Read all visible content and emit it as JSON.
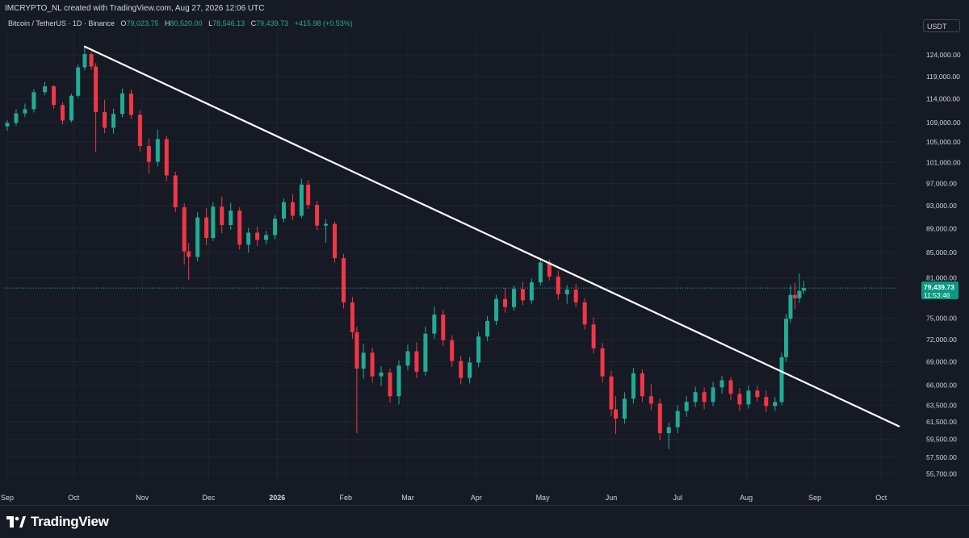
{
  "header": {
    "author_line": "IMCRYPTO_NL created with TradingView.com, Aug 27, 2026 12:06 UTC",
    "symbol_title": "Bitcoin / TetherUS · 1D · Binance",
    "ohlc": {
      "o_label": "O",
      "o": "79,023.75",
      "h_label": "H",
      "h": "80,520.00",
      "l_label": "L",
      "l": "78,546.13",
      "c_label": "C",
      "c": "79,439.73",
      "change": "+415.98 (+0.53%)"
    },
    "currency": "USDT"
  },
  "price_tag": {
    "price": "79,439.73",
    "countdown": "11:53:46"
  },
  "footer": {
    "logo_text": "TradingView",
    "logo_icon": "tradingview-logo-icon"
  },
  "colors": {
    "up": "#22ab94",
    "down": "#f23645",
    "background": "#161a25",
    "grid": "#1f2430",
    "trendline": "#ffffff",
    "price_tag": "#089981"
  },
  "chart_data": {
    "type": "candlestick",
    "symbol": "BTCUSDT",
    "interval": "1D",
    "x_ticks": [
      "Sep",
      "Oct",
      "Nov",
      "Dec",
      "2026",
      "Feb",
      "Mar",
      "Apr",
      "May",
      "Jun",
      "Jul",
      "Aug",
      "Sep",
      "Oct"
    ],
    "y_ticks": [
      124000,
      119000,
      114000,
      109000,
      105000,
      101000,
      97000,
      93000,
      89000,
      85000,
      81000,
      75000,
      72000,
      69000,
      66000,
      63500,
      61500,
      59500,
      57500,
      55700
    ],
    "y_tick_labels": [
      "124,000.00",
      "119,000.00",
      "114,000.00",
      "109,000.00",
      "105,000.00",
      "101,000.00",
      "97,000.00",
      "93,000.00",
      "89,000.00",
      "85,000.00",
      "81,000.00",
      "75,000.00",
      "72,000.00",
      "69,000.00",
      "66,000.00",
      "63,500.00",
      "61,500.00",
      "59,500.00",
      "57,500.00",
      "55,700.00"
    ],
    "y_scale": "log",
    "ylim": [
      55000,
      130000
    ],
    "last_price": 79439.73,
    "trendline": {
      "start": {
        "date": "2025-10-06",
        "price": 126000
      },
      "end": {
        "date": "2026-10-09",
        "price": 61000
      }
    },
    "candles": [
      {
        "d": "2025-09-01",
        "o": 108200,
        "h": 109500,
        "l": 107300,
        "c": 108900
      },
      {
        "d": "2025-09-05",
        "o": 108900,
        "h": 111800,
        "l": 108300,
        "c": 110900
      },
      {
        "d": "2025-09-09",
        "o": 110900,
        "h": 113000,
        "l": 110100,
        "c": 111800
      },
      {
        "d": "2025-09-13",
        "o": 111800,
        "h": 116200,
        "l": 111100,
        "c": 115500
      },
      {
        "d": "2025-09-18",
        "o": 115500,
        "h": 117800,
        "l": 114800,
        "c": 116800
      },
      {
        "d": "2025-09-22",
        "o": 116800,
        "h": 117100,
        "l": 111900,
        "c": 112700
      },
      {
        "d": "2025-09-26",
        "o": 112700,
        "h": 113300,
        "l": 108600,
        "c": 109400
      },
      {
        "d": "2025-09-30",
        "o": 109400,
        "h": 115200,
        "l": 109000,
        "c": 114700
      },
      {
        "d": "2025-10-03",
        "o": 114700,
        "h": 121800,
        "l": 114300,
        "c": 121100
      },
      {
        "d": "2025-10-06",
        "o": 121100,
        "h": 126000,
        "l": 120400,
        "c": 124200
      },
      {
        "d": "2025-10-09",
        "o": 124200,
        "h": 124800,
        "l": 120500,
        "c": 121300
      },
      {
        "d": "2025-10-11",
        "o": 121300,
        "h": 122100,
        "l": 103000,
        "c": 111200
      },
      {
        "d": "2025-10-15",
        "o": 111200,
        "h": 113800,
        "l": 106800,
        "c": 107900
      },
      {
        "d": "2025-10-19",
        "o": 107900,
        "h": 111900,
        "l": 106700,
        "c": 110800
      },
      {
        "d": "2025-10-23",
        "o": 110800,
        "h": 116300,
        "l": 110100,
        "c": 115200
      },
      {
        "d": "2025-10-27",
        "o": 115200,
        "h": 116100,
        "l": 109800,
        "c": 110600
      },
      {
        "d": "2025-10-31",
        "o": 110600,
        "h": 111600,
        "l": 103100,
        "c": 104200
      },
      {
        "d": "2025-11-04",
        "o": 104200,
        "h": 105800,
        "l": 98900,
        "c": 101100
      },
      {
        "d": "2025-11-08",
        "o": 101100,
        "h": 107500,
        "l": 100200,
        "c": 105600
      },
      {
        "d": "2025-11-12",
        "o": 105600,
        "h": 106200,
        "l": 97400,
        "c": 98500
      },
      {
        "d": "2025-11-16",
        "o": 98500,
        "h": 99200,
        "l": 91800,
        "c": 92700
      },
      {
        "d": "2025-11-20",
        "o": 92700,
        "h": 93400,
        "l": 83100,
        "c": 85200
      },
      {
        "d": "2025-11-22",
        "o": 85200,
        "h": 86600,
        "l": 80700,
        "c": 84300
      },
      {
        "d": "2025-11-26",
        "o": 84300,
        "h": 91800,
        "l": 83600,
        "c": 90900
      },
      {
        "d": "2025-11-30",
        "o": 90900,
        "h": 92500,
        "l": 86200,
        "c": 87400
      },
      {
        "d": "2025-12-03",
        "o": 87400,
        "h": 93600,
        "l": 86900,
        "c": 92800
      },
      {
        "d": "2025-12-07",
        "o": 92800,
        "h": 94600,
        "l": 88200,
        "c": 89600
      },
      {
        "d": "2025-12-11",
        "o": 89600,
        "h": 93500,
        "l": 88800,
        "c": 92100
      },
      {
        "d": "2025-12-15",
        "o": 92100,
        "h": 92700,
        "l": 85500,
        "c": 86300
      },
      {
        "d": "2025-12-19",
        "o": 86300,
        "h": 89100,
        "l": 85000,
        "c": 88300
      },
      {
        "d": "2025-12-23",
        "o": 88300,
        "h": 89400,
        "l": 86100,
        "c": 87100
      },
      {
        "d": "2025-12-27",
        "o": 87100,
        "h": 88600,
        "l": 86400,
        "c": 87900
      },
      {
        "d": "2025-12-31",
        "o": 87900,
        "h": 91300,
        "l": 87200,
        "c": 90700
      },
      {
        "d": "2026-01-04",
        "o": 90700,
        "h": 94300,
        "l": 90100,
        "c": 93600
      },
      {
        "d": "2026-01-08",
        "o": 93600,
        "h": 95100,
        "l": 90500,
        "c": 91200
      },
      {
        "d": "2026-01-12",
        "o": 91200,
        "h": 97900,
        "l": 90800,
        "c": 96800
      },
      {
        "d": "2026-01-15",
        "o": 96800,
        "h": 97600,
        "l": 92400,
        "c": 93100
      },
      {
        "d": "2026-01-19",
        "o": 93100,
        "h": 93800,
        "l": 88700,
        "c": 89500
      },
      {
        "d": "2026-01-23",
        "o": 89500,
        "h": 90600,
        "l": 86600,
        "c": 89800
      },
      {
        "d": "2026-01-27",
        "o": 89800,
        "h": 90200,
        "l": 83400,
        "c": 84100
      },
      {
        "d": "2026-01-31",
        "o": 84100,
        "h": 84800,
        "l": 76400,
        "c": 77300
      },
      {
        "d": "2026-02-04",
        "o": 77300,
        "h": 78100,
        "l": 72100,
        "c": 73000
      },
      {
        "d": "2026-02-06",
        "o": 73000,
        "h": 73800,
        "l": 60200,
        "c": 68100
      },
      {
        "d": "2026-02-09",
        "o": 68100,
        "h": 71400,
        "l": 66800,
        "c": 70200
      },
      {
        "d": "2026-02-13",
        "o": 70200,
        "h": 70900,
        "l": 66300,
        "c": 67100
      },
      {
        "d": "2026-02-17",
        "o": 67100,
        "h": 68400,
        "l": 65900,
        "c": 67600
      },
      {
        "d": "2026-02-21",
        "o": 67600,
        "h": 68100,
        "l": 63800,
        "c": 64600
      },
      {
        "d": "2026-02-25",
        "o": 64600,
        "h": 69200,
        "l": 63600,
        "c": 68500
      },
      {
        "d": "2026-03-01",
        "o": 68500,
        "h": 71300,
        "l": 67900,
        "c": 70400
      },
      {
        "d": "2026-03-05",
        "o": 70400,
        "h": 71600,
        "l": 66900,
        "c": 67700
      },
      {
        "d": "2026-03-09",
        "o": 67700,
        "h": 73800,
        "l": 67200,
        "c": 72800
      },
      {
        "d": "2026-03-13",
        "o": 72800,
        "h": 76700,
        "l": 72100,
        "c": 75500
      },
      {
        "d": "2026-03-17",
        "o": 75500,
        "h": 76200,
        "l": 71100,
        "c": 71900
      },
      {
        "d": "2026-03-21",
        "o": 71900,
        "h": 72600,
        "l": 68300,
        "c": 69100
      },
      {
        "d": "2026-03-25",
        "o": 69100,
        "h": 69800,
        "l": 66100,
        "c": 66900
      },
      {
        "d": "2026-03-29",
        "o": 66900,
        "h": 69600,
        "l": 66200,
        "c": 68900
      },
      {
        "d": "2026-04-02",
        "o": 68900,
        "h": 73100,
        "l": 68300,
        "c": 72400
      },
      {
        "d": "2026-04-06",
        "o": 72400,
        "h": 75300,
        "l": 71800,
        "c": 74600
      },
      {
        "d": "2026-04-10",
        "o": 74600,
        "h": 78400,
        "l": 74000,
        "c": 77800
      },
      {
        "d": "2026-04-14",
        "o": 77800,
        "h": 79500,
        "l": 75800,
        "c": 76600
      },
      {
        "d": "2026-04-18",
        "o": 76600,
        "h": 79800,
        "l": 76100,
        "c": 79300
      },
      {
        "d": "2026-04-22",
        "o": 79300,
        "h": 80400,
        "l": 76900,
        "c": 77600
      },
      {
        "d": "2026-04-26",
        "o": 77600,
        "h": 80900,
        "l": 77100,
        "c": 80300
      },
      {
        "d": "2026-04-30",
        "o": 80300,
        "h": 84100,
        "l": 79800,
        "c": 83400
      },
      {
        "d": "2026-05-04",
        "o": 83400,
        "h": 83900,
        "l": 80600,
        "c": 81200
      },
      {
        "d": "2026-05-08",
        "o": 81200,
        "h": 82100,
        "l": 77700,
        "c": 78500
      },
      {
        "d": "2026-05-12",
        "o": 78500,
        "h": 79900,
        "l": 77100,
        "c": 79200
      },
      {
        "d": "2026-05-16",
        "o": 79200,
        "h": 80100,
        "l": 76600,
        "c": 77300
      },
      {
        "d": "2026-05-20",
        "o": 77300,
        "h": 77900,
        "l": 73400,
        "c": 74100
      },
      {
        "d": "2026-05-24",
        "o": 74100,
        "h": 75100,
        "l": 70100,
        "c": 70800
      },
      {
        "d": "2026-05-28",
        "o": 70800,
        "h": 71500,
        "l": 66300,
        "c": 67100
      },
      {
        "d": "2026-06-01",
        "o": 67100,
        "h": 67800,
        "l": 62200,
        "c": 63000
      },
      {
        "d": "2026-06-03",
        "o": 63000,
        "h": 64600,
        "l": 60100,
        "c": 61900
      },
      {
        "d": "2026-06-07",
        "o": 61900,
        "h": 65100,
        "l": 61300,
        "c": 64300
      },
      {
        "d": "2026-06-11",
        "o": 64300,
        "h": 68200,
        "l": 63700,
        "c": 67500
      },
      {
        "d": "2026-06-15",
        "o": 67500,
        "h": 68000,
        "l": 63900,
        "c": 64600
      },
      {
        "d": "2026-06-19",
        "o": 64600,
        "h": 66100,
        "l": 62900,
        "c": 63700
      },
      {
        "d": "2026-06-23",
        "o": 63700,
        "h": 64300,
        "l": 59400,
        "c": 60200
      },
      {
        "d": "2026-06-27",
        "o": 60200,
        "h": 61400,
        "l": 58400,
        "c": 60900
      },
      {
        "d": "2026-07-01",
        "o": 60900,
        "h": 63500,
        "l": 60200,
        "c": 62800
      },
      {
        "d": "2026-07-05",
        "o": 62800,
        "h": 64600,
        "l": 62100,
        "c": 63900
      },
      {
        "d": "2026-07-09",
        "o": 63900,
        "h": 65800,
        "l": 63300,
        "c": 65100
      },
      {
        "d": "2026-07-13",
        "o": 65100,
        "h": 65700,
        "l": 63000,
        "c": 63900
      },
      {
        "d": "2026-07-17",
        "o": 63900,
        "h": 66400,
        "l": 63400,
        "c": 65700
      },
      {
        "d": "2026-07-21",
        "o": 65700,
        "h": 67200,
        "l": 64900,
        "c": 66600
      },
      {
        "d": "2026-07-25",
        "o": 66600,
        "h": 67000,
        "l": 64100,
        "c": 64900
      },
      {
        "d": "2026-07-29",
        "o": 64900,
        "h": 65600,
        "l": 62800,
        "c": 63600
      },
      {
        "d": "2026-08-02",
        "o": 63600,
        "h": 65900,
        "l": 63100,
        "c": 65300
      },
      {
        "d": "2026-08-06",
        "o": 65300,
        "h": 65900,
        "l": 63900,
        "c": 64500
      },
      {
        "d": "2026-08-10",
        "o": 64500,
        "h": 65300,
        "l": 62700,
        "c": 63400
      },
      {
        "d": "2026-08-14",
        "o": 63400,
        "h": 64500,
        "l": 62800,
        "c": 63900
      },
      {
        "d": "2026-08-17",
        "o": 63900,
        "h": 70200,
        "l": 63500,
        "c": 69600
      },
      {
        "d": "2026-08-19",
        "o": 69600,
        "h": 75600,
        "l": 69000,
        "c": 74900
      },
      {
        "d": "2026-08-21",
        "o": 74900,
        "h": 79900,
        "l": 74300,
        "c": 78400
      },
      {
        "d": "2026-08-23",
        "o": 78400,
        "h": 80200,
        "l": 76300,
        "c": 77900
      },
      {
        "d": "2026-08-25",
        "o": 77900,
        "h": 81700,
        "l": 77200,
        "c": 79000
      },
      {
        "d": "2026-08-27",
        "o": 79023.75,
        "h": 80520,
        "l": 78546.13,
        "c": 79439.73
      }
    ]
  }
}
